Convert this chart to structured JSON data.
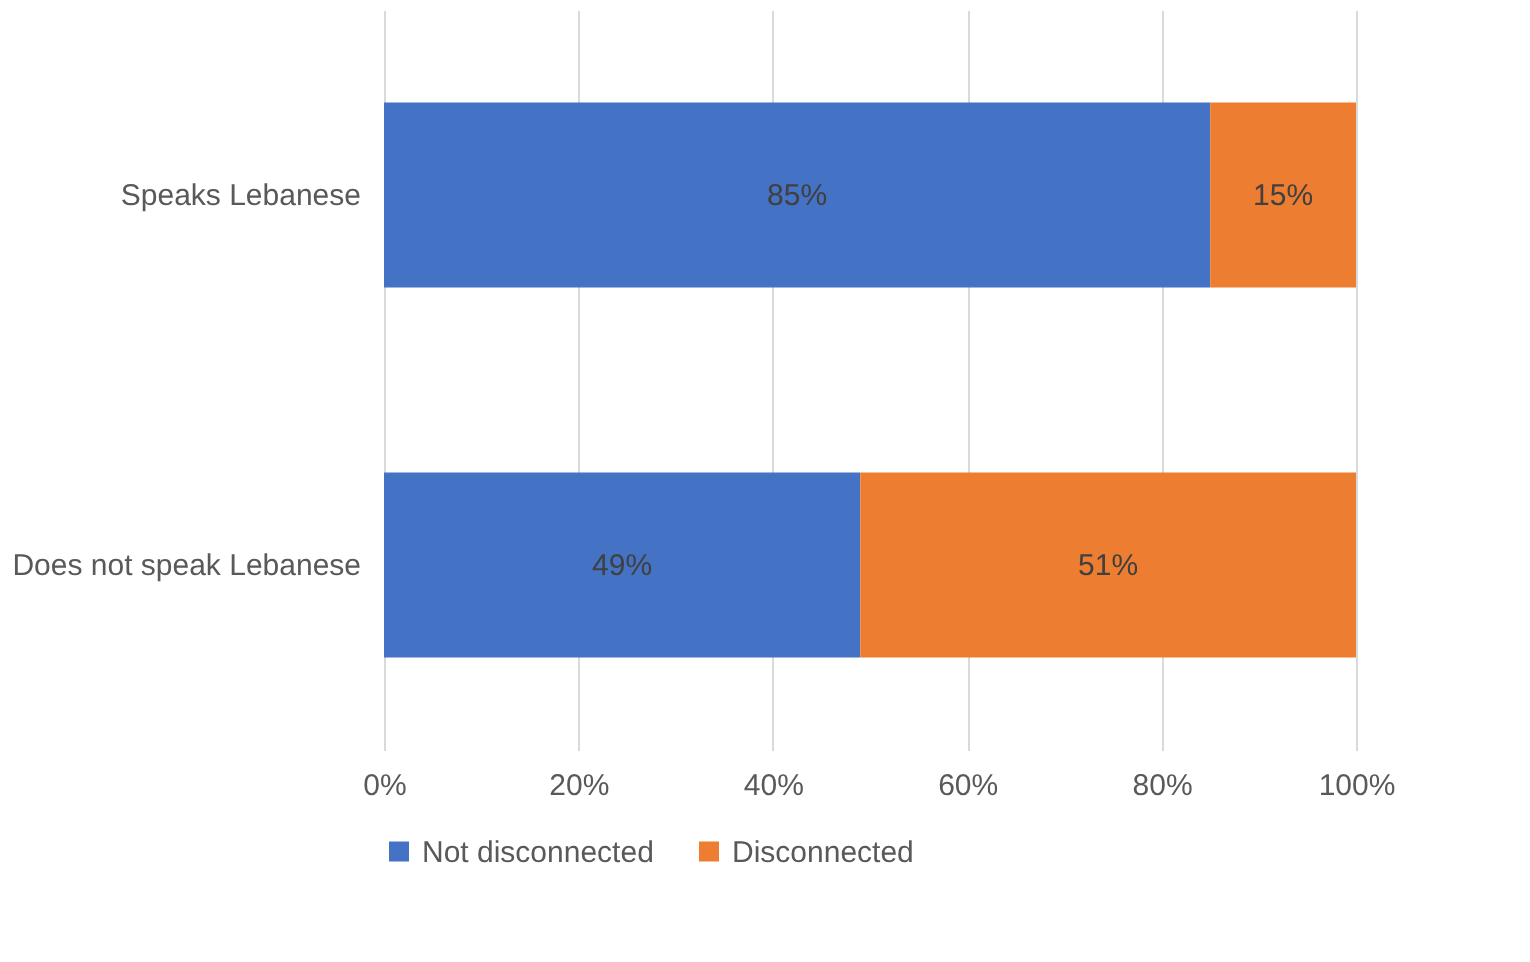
{
  "chart_data": {
    "type": "bar",
    "orientation": "horizontal",
    "stacked": true,
    "categories": [
      "Speaks Lebanese",
      "Does not speak Lebanese"
    ],
    "series": [
      {
        "name": "Not disconnected",
        "color": "#4472c4",
        "values": [
          85,
          49
        ],
        "value_labels": [
          "85%",
          "49%"
        ]
      },
      {
        "name": "Disconnected",
        "color": "#ed7d31",
        "values": [
          15,
          51
        ],
        "value_labels": [
          "15%",
          "51%"
        ]
      }
    ],
    "xlim": [
      0,
      100
    ],
    "xticks": [
      {
        "value": 0,
        "label": "0%"
      },
      {
        "value": 20,
        "label": "20%"
      },
      {
        "value": 40,
        "label": "40%"
      },
      {
        "value": 60,
        "label": "60%"
      },
      {
        "value": 80,
        "label": "80%"
      },
      {
        "value": 100,
        "label": "100%"
      }
    ],
    "grid": "x",
    "legend": "bottom"
  }
}
